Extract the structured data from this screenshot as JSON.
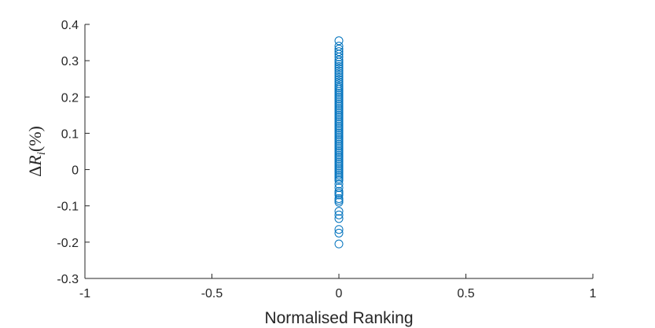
{
  "chart_data": {
    "type": "scatter",
    "xlabel": "Normalised Ranking",
    "ylabel_parts": {
      "delta": "Δ",
      "var": "R",
      "sub": "i",
      "unit": "(%)"
    },
    "xlim": [
      -1,
      1
    ],
    "ylim": [
      -0.3,
      0.4
    ],
    "xticks": [
      -1,
      -0.5,
      0,
      0.5,
      1
    ],
    "xtick_labels": [
      "-1",
      "-0.5",
      "0",
      "0.5",
      "1"
    ],
    "yticks": [
      -0.3,
      -0.2,
      -0.1,
      0,
      0.1,
      0.2,
      0.3,
      0.4
    ],
    "ytick_labels": [
      "-0.3",
      "-0.2",
      "-0.1",
      "0",
      "0.1",
      "0.2",
      "0.3",
      "0.4"
    ],
    "grid": false,
    "marker_color": "#0072BD",
    "marker": "open-circle",
    "series": [
      {
        "x": [
          0,
          0,
          0,
          0,
          0,
          0,
          0,
          0,
          0,
          0,
          0,
          0,
          0,
          0,
          0,
          0,
          0,
          0,
          0,
          0,
          0,
          0,
          0,
          0,
          0,
          0,
          0,
          0,
          0,
          0,
          0,
          0,
          0,
          0,
          0,
          0,
          0,
          0,
          0,
          0,
          0,
          0,
          0,
          0,
          0,
          0,
          0,
          0,
          0,
          0,
          0,
          0,
          0,
          0,
          0,
          0,
          0,
          0,
          0,
          0,
          0,
          0,
          0,
          0,
          0,
          0,
          0,
          0,
          0,
          0,
          0,
          0,
          0,
          0,
          0,
          0,
          0,
          0,
          0,
          0,
          0,
          0,
          0,
          0,
          0
        ],
        "y": [
          0.355,
          0.34,
          0.332,
          0.325,
          0.318,
          0.31,
          0.302,
          0.296,
          0.29,
          0.284,
          0.278,
          0.272,
          0.266,
          0.26,
          0.254,
          0.248,
          0.242,
          0.236,
          0.23,
          0.225,
          0.22,
          0.215,
          0.21,
          0.205,
          0.2,
          0.195,
          0.19,
          0.185,
          0.18,
          0.175,
          0.17,
          0.165,
          0.16,
          0.155,
          0.15,
          0.145,
          0.14,
          0.135,
          0.13,
          0.125,
          0.12,
          0.115,
          0.11,
          0.105,
          0.1,
          0.095,
          0.09,
          0.085,
          0.08,
          0.075,
          0.07,
          0.065,
          0.06,
          0.055,
          0.05,
          0.045,
          0.04,
          0.035,
          0.03,
          0.025,
          0.02,
          0.015,
          0.01,
          0.005,
          0,
          -0.005,
          -0.01,
          -0.015,
          -0.02,
          -0.025,
          -0.03,
          -0.04,
          -0.05,
          -0.06,
          -0.065,
          -0.07,
          -0.08,
          -0.085,
          -0.09,
          -0.115,
          -0.125,
          -0.135,
          -0.165,
          -0.175,
          -0.205
        ]
      }
    ]
  }
}
